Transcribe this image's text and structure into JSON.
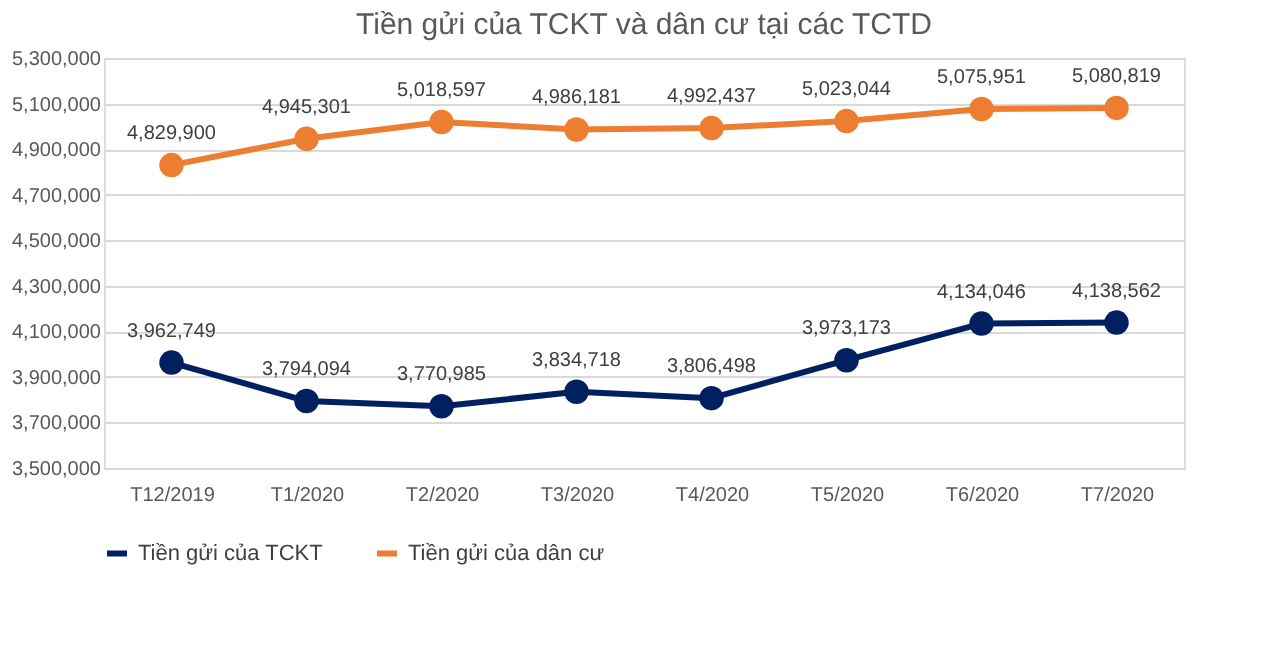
{
  "chart_data": {
    "type": "line",
    "title": "Tiền gửi của TCKT và dân cư tại các TCTD",
    "categories": [
      "T12/2019",
      "T1/2020",
      "T2/2020",
      "T3/2020",
      "T4/2020",
      "T5/2020",
      "T6/2020",
      "T7/2020"
    ],
    "series": [
      {
        "name": "Tiền gửi của TCKT",
        "color": "#002060",
        "values": [
          3962749,
          3794094,
          3770985,
          3834718,
          3806498,
          3973173,
          4134046,
          4138562
        ],
        "value_labels": [
          "3,962,749",
          "3,794,094",
          "3,770,985",
          "3,834,718",
          "3,806,498",
          "3,973,173",
          "4,134,046",
          "4,138,562"
        ]
      },
      {
        "name": "Tiền gửi của dân cư",
        "color": "#ed7d31",
        "values": [
          4829900,
          4945301,
          5018597,
          4986181,
          4992437,
          5023044,
          5075951,
          5080819
        ],
        "value_labels": [
          "4,829,900",
          "4,945,301",
          "5,018,597",
          "4,986,181",
          "4,992,437",
          "5,023,044",
          "5,075,951",
          "5,080,819"
        ]
      }
    ],
    "ylim": [
      3500000,
      5300000
    ],
    "yticks": [
      {
        "value": 3500000,
        "label": "3,500,000"
      },
      {
        "value": 3700000,
        "label": "3,700,000"
      },
      {
        "value": 3900000,
        "label": "3,900,000"
      },
      {
        "value": 4100000,
        "label": "4,100,000"
      },
      {
        "value": 4300000,
        "label": "4,300,000"
      },
      {
        "value": 4500000,
        "label": "4,500,000"
      },
      {
        "value": 4700000,
        "label": "4,700,000"
      },
      {
        "value": 4900000,
        "label": "4,900,000"
      },
      {
        "value": 5100000,
        "label": "5,100,000"
      },
      {
        "value": 5300000,
        "label": "5,300,000"
      }
    ],
    "grid": "y",
    "legend": "bottom",
    "marker": "circle",
    "line_style": "solid"
  }
}
